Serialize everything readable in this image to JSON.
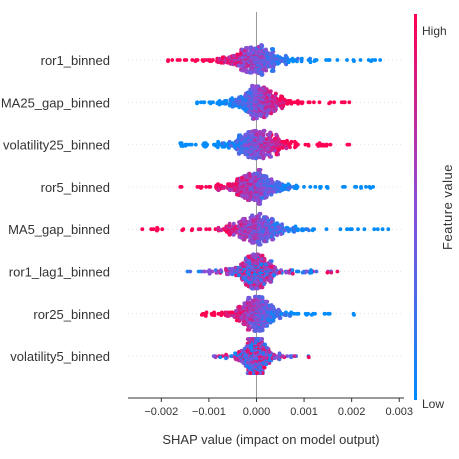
{
  "chart_data": {
    "type": "scatter",
    "subtype": "shap-beeswarm",
    "title": "",
    "xlabel": "SHAP value (impact on model output)",
    "ylabel": "",
    "xlim": [
      -0.0027,
      0.0031
    ],
    "xticks": [
      -0.002,
      -0.001,
      0.0,
      0.001,
      0.002,
      0.003
    ],
    "xtick_labels": [
      "−0.002",
      "−0.001",
      "0.000",
      "0.001",
      "0.002",
      "0.003"
    ],
    "zero_line": true,
    "grid": false,
    "colorbar": {
      "label": "Feature value",
      "high_label": "High",
      "low_label": "Low",
      "high_color": "#ff0052",
      "low_color": "#008bfb"
    },
    "features": [
      {
        "name": "ror1_binned",
        "min": -0.00186,
        "max": 0.0026,
        "center": -2e-05,
        "spread": 0.00045,
        "high_side": "negative"
      },
      {
        "name": "MA25_gap_binned",
        "min": -0.00125,
        "max": 0.00195,
        "center": 5e-05,
        "spread": 0.00035,
        "high_side": "positive"
      },
      {
        "name": "volatility25_binned",
        "min": -0.0016,
        "max": 0.00195,
        "center": 0.0,
        "spread": 0.0004,
        "high_side": "positive"
      },
      {
        "name": "ror5_binned",
        "min": -0.0016,
        "max": 0.00245,
        "center": 0.0,
        "spread": 0.0004,
        "high_side": "negative"
      },
      {
        "name": "MA5_gap_binned",
        "min": -0.0024,
        "max": 0.00277,
        "center": 2e-05,
        "spread": 0.00045,
        "high_side": "negative"
      },
      {
        "name": "ror1_lag1_binned",
        "min": -0.00145,
        "max": 0.0017,
        "center": 0.0,
        "spread": 0.0003,
        "high_side": "mixed"
      },
      {
        "name": "ror25_binned",
        "min": -0.00115,
        "max": 0.00205,
        "center": 0.0,
        "spread": 0.0003,
        "high_side": "negative"
      },
      {
        "name": "volatility5_binned",
        "min": -0.0009,
        "max": 0.0011,
        "center": 0.0,
        "spread": 0.0002,
        "high_side": "mixed"
      }
    ]
  }
}
